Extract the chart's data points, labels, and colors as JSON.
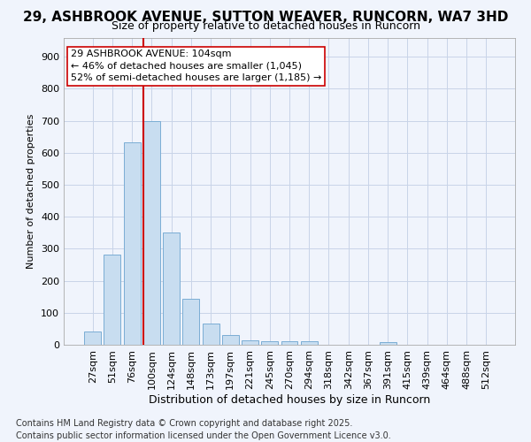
{
  "title_line1": "29, ASHBROOK AVENUE, SUTTON WEAVER, RUNCORN, WA7 3HD",
  "title_line2": "Size of property relative to detached houses in Runcorn",
  "xlabel": "Distribution of detached houses by size in Runcorn",
  "ylabel": "Number of detached properties",
  "bar_labels": [
    "27sqm",
    "51sqm",
    "76sqm",
    "100sqm",
    "124sqm",
    "148sqm",
    "173sqm",
    "197sqm",
    "221sqm",
    "245sqm",
    "270sqm",
    "294sqm",
    "318sqm",
    "342sqm",
    "367sqm",
    "391sqm",
    "415sqm",
    "439sqm",
    "464sqm",
    "488sqm",
    "512sqm"
  ],
  "bar_values": [
    42,
    283,
    632,
    700,
    350,
    145,
    65,
    30,
    14,
    12,
    10,
    10,
    0,
    0,
    0,
    8,
    0,
    0,
    0,
    0,
    0
  ],
  "bar_color": "#c8ddf0",
  "bar_edge_color": "#7aadd4",
  "grid_color": "#c8d4e8",
  "background_color": "#ffffff",
  "fig_background_color": "#f0f4fc",
  "ylim": [
    0,
    960
  ],
  "yticks": [
    0,
    100,
    200,
    300,
    400,
    500,
    600,
    700,
    800,
    900
  ],
  "vline_color": "#cc0000",
  "vline_index": 3,
  "annotation_text": "29 ASHBROOK AVENUE: 104sqm\n← 46% of detached houses are smaller (1,045)\n52% of semi-detached houses are larger (1,185) →",
  "annotation_box_facecolor": "#ffffff",
  "annotation_box_edgecolor": "#cc0000",
  "footnote": "Contains HM Land Registry data © Crown copyright and database right 2025.\nContains public sector information licensed under the Open Government Licence v3.0.",
  "footnote_fontsize": 7,
  "title1_fontsize": 11,
  "title2_fontsize": 9,
  "xlabel_fontsize": 9,
  "ylabel_fontsize": 8,
  "tick_fontsize": 8,
  "annot_fontsize": 8
}
